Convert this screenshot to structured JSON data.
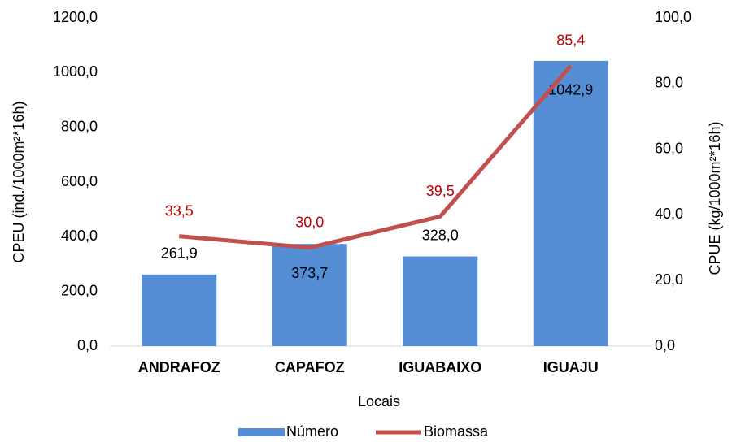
{
  "chart_data": {
    "type": "bar",
    "x_label": "Locais",
    "y_label": "CPEU (ind./1000m²*16h)",
    "y2_label": "CPUE (kg/1000m²*16h)",
    "categories": [
      "ANDRAFOZ",
      "CAPAFOZ",
      "IGUABAIXO",
      "IGUAJU"
    ],
    "series": [
      {
        "name": "Número",
        "color": "#558ed5",
        "type": "bar",
        "values": [
          261.9,
          373.7,
          328.0,
          1042.9
        ],
        "value_labels": [
          "261,9",
          "373,7",
          "328,0",
          "1042,9"
        ]
      },
      {
        "name": "Biomassa",
        "color": "#c0504d",
        "type": "line",
        "axis": "y2",
        "label_color": "#c00000",
        "values": [
          33.5,
          30.0,
          39.5,
          85.4
        ],
        "value_labels": [
          "33,5",
          "30,0",
          "39,5",
          "85,4"
        ]
      }
    ],
    "ylim": [
      0,
      1200
    ],
    "yticks": [
      {
        "value": 0,
        "label": "0,0"
      },
      {
        "value": 200,
        "label": "200,0"
      },
      {
        "value": 400,
        "label": "400,0"
      },
      {
        "value": 600,
        "label": "600,0"
      },
      {
        "value": 800,
        "label": "800,0"
      },
      {
        "value": 1000,
        "label": "1000,0"
      },
      {
        "value": 1200,
        "label": "1200,0"
      }
    ],
    "y2lim": [
      0,
      100
    ],
    "y2ticks": [
      {
        "value": 0,
        "label": "0,0"
      },
      {
        "value": 20,
        "label": "20,0"
      },
      {
        "value": 40,
        "label": "40,0"
      },
      {
        "value": 60,
        "label": "60,0"
      },
      {
        "value": 80,
        "label": "80,0"
      },
      {
        "value": 100,
        "label": "100,0"
      }
    ],
    "legend": "bottom"
  }
}
